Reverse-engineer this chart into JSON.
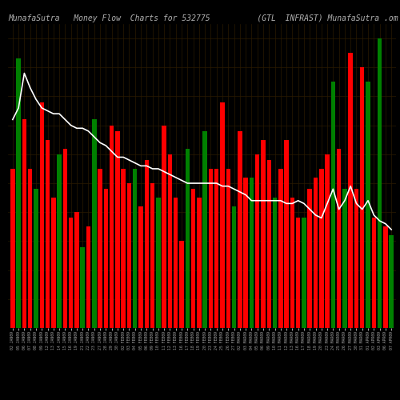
{
  "title": "MunafaSutra   Money Flow  Charts for 532775          (GTL  INFRAST) MunafaSutra .om",
  "background_color": "#000000",
  "bar_colors": [
    "red",
    "green",
    "red",
    "red",
    "green",
    "red",
    "red",
    "red",
    "green",
    "red",
    "red",
    "red",
    "green",
    "red",
    "green",
    "red",
    "red",
    "red",
    "red",
    "red",
    "red",
    "green",
    "red",
    "red",
    "red",
    "green",
    "red",
    "red",
    "red",
    "red",
    "green",
    "red",
    "red",
    "green",
    "red",
    "red",
    "red",
    "red",
    "green",
    "red",
    "red",
    "green",
    "red",
    "red",
    "red",
    "green",
    "red",
    "red",
    "red",
    "red",
    "green",
    "red",
    "red",
    "red",
    "red",
    "green",
    "red",
    "green",
    "red",
    "red",
    "red",
    "green",
    "red",
    "green",
    "red",
    "green"
  ],
  "bar_heights": [
    55,
    93,
    72,
    55,
    48,
    78,
    65,
    45,
    60,
    62,
    38,
    40,
    28,
    35,
    72,
    55,
    48,
    70,
    68,
    55,
    50,
    55,
    42,
    58,
    50,
    45,
    70,
    60,
    45,
    30,
    62,
    48,
    45,
    68,
    55,
    55,
    78,
    55,
    42,
    68,
    52,
    52,
    60,
    65,
    58,
    45,
    55,
    65,
    45,
    38,
    38,
    48,
    52,
    55,
    60,
    85,
    62,
    48,
    95,
    48,
    90,
    85,
    38,
    100,
    35,
    32
  ],
  "line_values": [
    72,
    76,
    88,
    83,
    79,
    76,
    75,
    74,
    74,
    72,
    70,
    69,
    69,
    68,
    66,
    64,
    63,
    61,
    59,
    59,
    58,
    57,
    56,
    56,
    55,
    55,
    54,
    53,
    52,
    51,
    50,
    50,
    50,
    50,
    50,
    50,
    49,
    49,
    48,
    47,
    46,
    44,
    44,
    44,
    44,
    44,
    44,
    43,
    43,
    44,
    43,
    41,
    39,
    38,
    43,
    48,
    41,
    44,
    49,
    43,
    41,
    44,
    39,
    37,
    36,
    34
  ],
  "x_labels": [
    "02 JAN09",
    "05 JAN09",
    "06 JAN09",
    "07 JAN09",
    "08 JAN09",
    "09 JAN09",
    "12 JAN09",
    "13 JAN09",
    "14 JAN09",
    "15 JAN09",
    "16 JAN09",
    "19 JAN09",
    "21 JAN09",
    "22 JAN09",
    "23 JAN09",
    "27 JAN09",
    "28 JAN09",
    "29 JAN09",
    "30 JAN09",
    "02 FEB09",
    "03 FEB09",
    "04 FEB09",
    "05 FEB09",
    "06 FEB09",
    "09 FEB09",
    "10 FEB09",
    "11 FEB09",
    "12 FEB09",
    "13 FEB09",
    "16 FEB09",
    "17 FEB09",
    "18 FEB09",
    "19 FEB09",
    "20 FEB09",
    "23 FEB09",
    "24 FEB09",
    "25 FEB09",
    "26 FEB09",
    "27 FEB09",
    "02 MAR09",
    "03 MAR09",
    "04 MAR09",
    "05 MAR09",
    "06 MAR09",
    "09 MAR09",
    "10 MAR09",
    "11 MAR09",
    "12 MAR09",
    "13 MAR09",
    "16 MAR09",
    "17 MAR09",
    "18 MAR09",
    "19 MAR09",
    "20 MAR09",
    "23 MAR09",
    "24 MAR09",
    "25 MAR09",
    "26 MAR09",
    "27 MAR09",
    "30 MAR09",
    "31 MAR09",
    "01 APR09",
    "02 APR09",
    "03 APR09",
    "06 APR09",
    "07 APR09"
  ],
  "line_color": "#ffffff",
  "grid_color": "#2a1a00",
  "title_color": "#b0b0b0",
  "title_fontsize": 7.0,
  "ylim_max": 105,
  "bar_width": 0.75
}
